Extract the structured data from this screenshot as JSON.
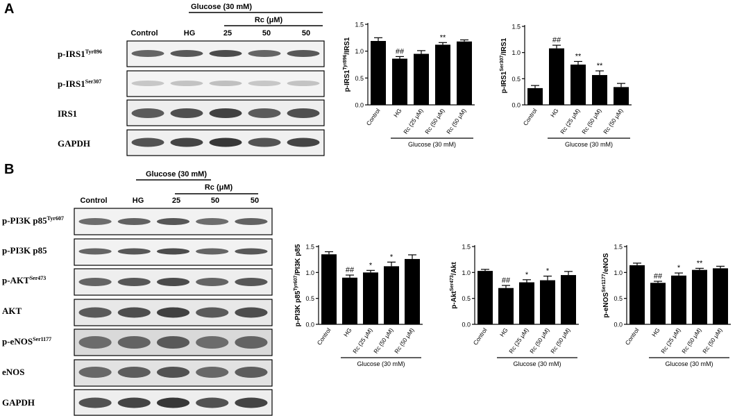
{
  "panels": [
    {
      "letter": "A",
      "blot": {
        "glucose_label": "Glucose (30 mM)",
        "rc_label": "Rc (μM)",
        "lanes": [
          "Control",
          "HG",
          "25",
          "50",
          "50"
        ],
        "rows": [
          {
            "label": "p-IRS1",
            "sup": "Tyr896"
          },
          {
            "label": "p-IRS1",
            "sup": "Ser307"
          },
          {
            "label": "IRS1",
            "sup": ""
          },
          {
            "label": "GAPDH",
            "sup": ""
          }
        ]
      }
    },
    {
      "letter": "B",
      "blot": {
        "glucose_label": "Glucose (30 mM)",
        "rc_label": "Rc (μM)",
        "lanes": [
          "Control",
          "HG",
          "25",
          "50",
          "50"
        ],
        "rows": [
          {
            "label": "p-PI3K p85",
            "sup": "Tyr607"
          },
          {
            "label": "p-PI3K p85",
            "sup": ""
          },
          {
            "label": "p-AKT",
            "sup": "Ser473"
          },
          {
            "label": "AKT",
            "sup": ""
          },
          {
            "label": "p-eNOS",
            "sup": "Ser1177"
          },
          {
            "label": "eNOS",
            "sup": ""
          },
          {
            "label": "GAPDH",
            "sup": ""
          }
        ]
      }
    }
  ],
  "chart_data": [
    {
      "type": "bar",
      "panel": "A",
      "ylabel": {
        "pre": "p-IRS1",
        "sup": "Tyr896",
        "post": "/IRS1"
      },
      "categories": [
        "Control",
        "HG",
        "Rc (25 μM)",
        "Rc (50 μM)",
        "Rc (50 μM)"
      ],
      "values": [
        1.19,
        0.86,
        0.95,
        1.12,
        1.18
      ],
      "errors": [
        0.06,
        0.04,
        0.06,
        0.04,
        0.03
      ],
      "annotations": [
        "",
        "##",
        "",
        "**",
        ""
      ],
      "ylim": [
        0,
        1.5
      ],
      "yticks": [
        "0.0",
        "0.5",
        "1.0",
        "1.5"
      ],
      "group_label": "Glucose (30 mM)"
    },
    {
      "type": "bar",
      "panel": "A",
      "ylabel": {
        "pre": "p-IRS1",
        "sup": "Ser307",
        "post": "/IRS1"
      },
      "categories": [
        "Control",
        "HG",
        "Rc (25 μM)",
        "Rc (50 μM)",
        "Rc (50 μM)"
      ],
      "values": [
        0.32,
        1.08,
        0.77,
        0.57,
        0.34
      ],
      "errors": [
        0.05,
        0.06,
        0.06,
        0.08,
        0.07
      ],
      "annotations": [
        "",
        "##",
        "**",
        "**",
        ""
      ],
      "ylim": [
        0,
        1.5
      ],
      "yticks": [
        "0.0",
        "0.5",
        "1.0",
        "1.5"
      ],
      "group_label": "Glucose (30 mM)"
    },
    {
      "type": "bar",
      "panel": "B",
      "ylabel": {
        "pre": "p-PI3K p85",
        "sup": "Tyr607",
        "post": "/PI3K p85"
      },
      "categories": [
        "Control",
        "HG",
        "Rc (25 μM)",
        "Rc (50 μM)",
        "Rc (50 μM)"
      ],
      "values": [
        1.35,
        0.9,
        1.0,
        1.12,
        1.26
      ],
      "errors": [
        0.05,
        0.05,
        0.04,
        0.08,
        0.08
      ],
      "annotations": [
        "",
        "##",
        "*",
        "*",
        ""
      ],
      "ylim": [
        0,
        1.5
      ],
      "yticks": [
        "0.0",
        "0.5",
        "1.0",
        "1.5"
      ],
      "group_label": "Glucose (30 mM)"
    },
    {
      "type": "bar",
      "panel": "B",
      "ylabel": {
        "pre": "p-Akt",
        "sup": "Ser473",
        "post": "/Akt"
      },
      "categories": [
        "Control",
        "HG",
        "Rc (25 μM)",
        "Rc (50 μM)",
        "Rc (50 μM)"
      ],
      "values": [
        1.03,
        0.7,
        0.81,
        0.85,
        0.95
      ],
      "errors": [
        0.03,
        0.05,
        0.05,
        0.08,
        0.07
      ],
      "annotations": [
        "",
        "##",
        "*",
        "*",
        ""
      ],
      "ylim": [
        0,
        1.5
      ],
      "yticks": [
        "0.0",
        "0.5",
        "1.0",
        "1.5"
      ],
      "group_label": "Glucose (30 mM)"
    },
    {
      "type": "bar",
      "panel": "B",
      "ylabel": {
        "pre": "p-eNOS",
        "sup": "Ser1177",
        "post": "/eNOS"
      },
      "categories": [
        "Control",
        "HG",
        "Rc (25 μM)",
        "Rc (50 μM)",
        "Rc (50 μM)"
      ],
      "values": [
        1.14,
        0.8,
        0.94,
        1.05,
        1.08
      ],
      "errors": [
        0.04,
        0.03,
        0.05,
        0.03,
        0.04
      ],
      "annotations": [
        "",
        "##",
        "*",
        "**",
        ""
      ],
      "ylim": [
        0,
        1.5
      ],
      "yticks": [
        "0.0",
        "0.5",
        "1.0",
        "1.5"
      ],
      "group_label": "Glucose (30 mM)"
    }
  ]
}
